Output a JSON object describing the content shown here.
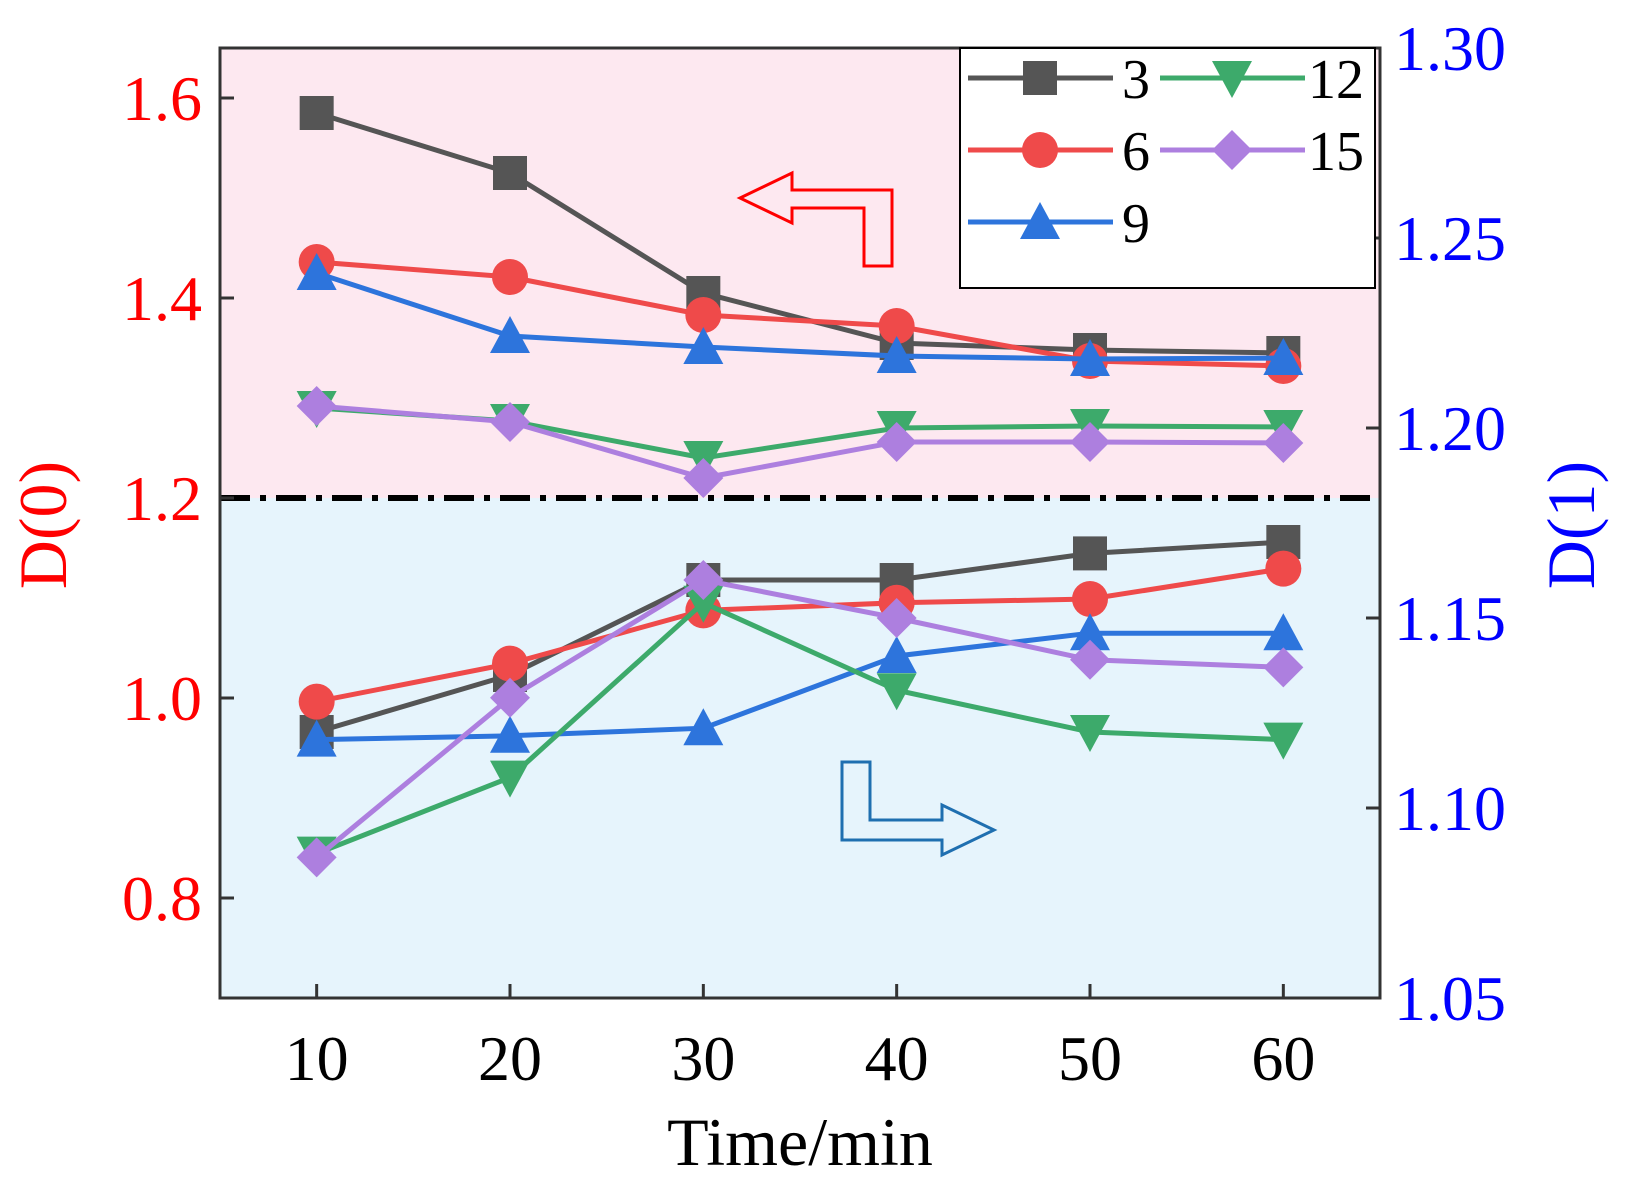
{
  "chart_data": {
    "type": "line",
    "xlabel": "Time/min",
    "ylabel_left": "D(0)",
    "ylabel_right": "D(1)",
    "x": [
      10,
      20,
      30,
      40,
      50,
      60
    ],
    "x_ticks": [
      "10",
      "20",
      "30",
      "40",
      "50",
      "60"
    ],
    "xlim": [
      5,
      65
    ],
    "ylim_left": [
      0.7,
      1.65
    ],
    "ylim_right": [
      1.05,
      1.3
    ],
    "yticks_left": [
      "0.8",
      "1.0",
      "1.2",
      "1.4",
      "1.6"
    ],
    "yticks_right": [
      "1.05",
      "1.10",
      "1.15",
      "1.20",
      "1.25",
      "1.30"
    ],
    "divider_value_left": 1.2,
    "legend_position": "top-right",
    "colors": {
      "left_axis": "#ff0000",
      "right_axis": "#0000ff",
      "upper_region": "#fde8f0",
      "lower_region": "#e6f4fc",
      "arrow_left": "#ff0000",
      "arrow_right": "#1f6fb0"
    },
    "series": [
      {
        "name": "3",
        "marker": "square",
        "color": "#555555",
        "d0": [
          1.585,
          1.525,
          1.405,
          1.355,
          1.348,
          1.345
        ],
        "d1": [
          1.12,
          1.135,
          1.16,
          1.16,
          1.167,
          1.17
        ]
      },
      {
        "name": "6",
        "marker": "circle",
        "color": "#ef4a4a",
        "d0": [
          1.436,
          1.421,
          1.383,
          1.372,
          1.337,
          1.332
        ],
        "d1": [
          1.128,
          1.138,
          1.152,
          1.154,
          1.155,
          1.163
        ]
      },
      {
        "name": "9",
        "marker": "triangle-up",
        "color": "#2d74dc",
        "d0": [
          1.425,
          1.362,
          1.351,
          1.342,
          1.339,
          1.34
        ],
        "d1": [
          1.118,
          1.119,
          1.121,
          1.14,
          1.146,
          1.146
        ]
      },
      {
        "name": "12",
        "marker": "triangle-down",
        "color": "#3daa6b",
        "d0": [
          1.29,
          1.277,
          1.24,
          1.27,
          1.272,
          1.271
        ],
        "d1": [
          1.088,
          1.108,
          1.154,
          1.131,
          1.12,
          1.118
        ]
      },
      {
        "name": "15",
        "marker": "diamond",
        "color": "#ad7fdf",
        "d0": [
          1.292,
          1.276,
          1.22,
          1.256,
          1.256,
          1.255
        ],
        "d1": [
          1.087,
          1.129,
          1.16,
          1.15,
          1.139,
          1.137
        ]
      }
    ]
  }
}
